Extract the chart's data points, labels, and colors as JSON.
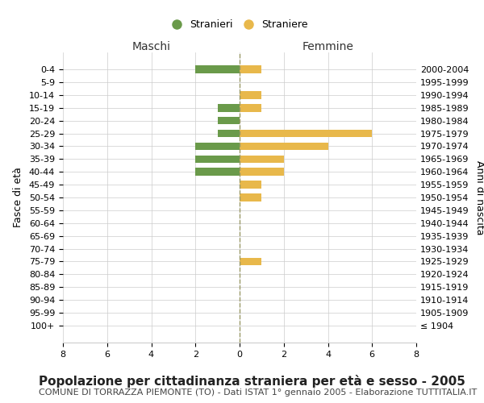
{
  "age_groups": [
    "100+",
    "95-99",
    "90-94",
    "85-89",
    "80-84",
    "75-79",
    "70-74",
    "65-69",
    "60-64",
    "55-59",
    "50-54",
    "45-49",
    "40-44",
    "35-39",
    "30-34",
    "25-29",
    "20-24",
    "15-19",
    "10-14",
    "5-9",
    "0-4"
  ],
  "birth_years": [
    "≤ 1904",
    "1905-1909",
    "1910-1914",
    "1915-1919",
    "1920-1924",
    "1925-1929",
    "1930-1934",
    "1935-1939",
    "1940-1944",
    "1945-1949",
    "1950-1954",
    "1955-1959",
    "1960-1964",
    "1965-1969",
    "1970-1974",
    "1975-1979",
    "1980-1984",
    "1985-1989",
    "1990-1994",
    "1995-1999",
    "2000-2004"
  ],
  "males": [
    0,
    0,
    0,
    0,
    0,
    0,
    0,
    0,
    0,
    0,
    0,
    0,
    2,
    2,
    2,
    1,
    1,
    1,
    0,
    0,
    2
  ],
  "females": [
    0,
    0,
    0,
    0,
    0,
    1,
    0,
    0,
    0,
    0,
    1,
    1,
    2,
    2,
    4,
    6,
    0,
    1,
    1,
    0,
    1
  ],
  "male_color": "#6a9a4a",
  "female_color": "#e8b84b",
  "background_color": "#ffffff",
  "grid_color": "#cccccc",
  "center_line_color": "#999966",
  "xlim": 8,
  "title": "Popolazione per cittadinanza straniera per età e sesso - 2005",
  "subtitle": "COMUNE DI TORRAZZA PIEMONTE (TO) - Dati ISTAT 1° gennaio 2005 - Elaborazione TUTTITALIA.IT",
  "ylabel_left": "Fasce di età",
  "ylabel_right": "Anni di nascita",
  "header_left": "Maschi",
  "header_right": "Femmine",
  "legend_males": "Stranieri",
  "legend_females": "Straniere",
  "title_fontsize": 11,
  "subtitle_fontsize": 8,
  "tick_fontsize": 8,
  "label_fontsize": 9,
  "header_fontsize": 10
}
